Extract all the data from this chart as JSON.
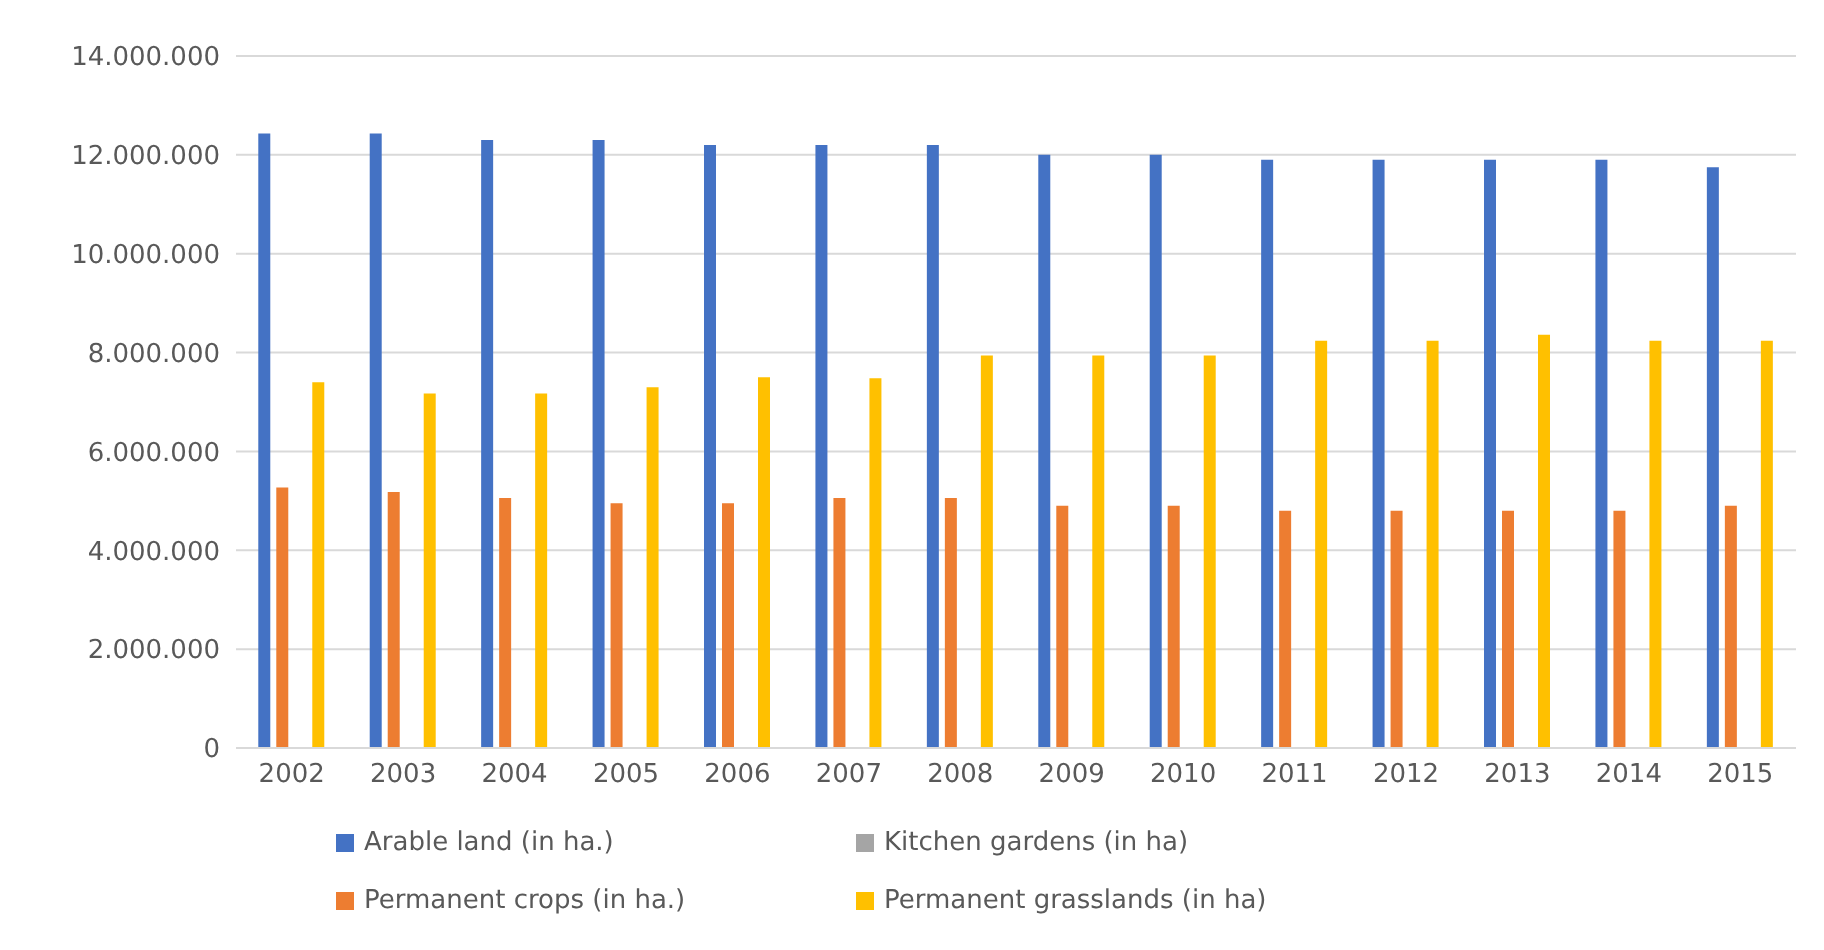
{
  "chart_data": {
    "type": "bar",
    "categories": [
      "2002",
      "2003",
      "2004",
      "2005",
      "2006",
      "2007",
      "2008",
      "2009",
      "2010",
      "2011",
      "2012",
      "2013",
      "2014",
      "2015"
    ],
    "series": [
      {
        "name": "Arable land (in ha.)",
        "color": "#4472c4",
        "values": [
          12430000,
          12430000,
          12300000,
          12300000,
          12200000,
          12200000,
          12200000,
          12000000,
          12000000,
          11900000,
          11900000,
          11900000,
          11900000,
          11750000
        ]
      },
      {
        "name": "Permanent crops (in ha.)",
        "color": "#ed7d31",
        "values": [
          5270000,
          5180000,
          5060000,
          4950000,
          4950000,
          5060000,
          5060000,
          4900000,
          4900000,
          4800000,
          4800000,
          4800000,
          4800000,
          4900000
        ]
      },
      {
        "name": "Kitchen gardens (in ha)",
        "color": "#a5a5a5",
        "values": [
          0,
          0,
          0,
          0,
          0,
          0,
          0,
          0,
          0,
          0,
          0,
          0,
          0,
          0
        ]
      },
      {
        "name": "Permanent grasslands (in ha)",
        "color": "#ffc000",
        "values": [
          7400000,
          7170000,
          7170000,
          7300000,
          7500000,
          7480000,
          7940000,
          7940000,
          7940000,
          8240000,
          8240000,
          8360000,
          8240000,
          8240000
        ]
      }
    ],
    "ylim": [
      0,
      14000000
    ],
    "yticks": [
      {
        "value": 0,
        "label": "0"
      },
      {
        "value": 2000000,
        "label": "2.000.000"
      },
      {
        "value": 4000000,
        "label": "4.000.000"
      },
      {
        "value": 6000000,
        "label": "6.000.000"
      },
      {
        "value": 8000000,
        "label": "8.000.000"
      },
      {
        "value": 10000000,
        "label": "10.000.000"
      },
      {
        "value": 12000000,
        "label": "12.000.000"
      },
      {
        "value": 14000000,
        "label": "14.000.000"
      }
    ],
    "grid": "y",
    "legend": "bottom"
  }
}
